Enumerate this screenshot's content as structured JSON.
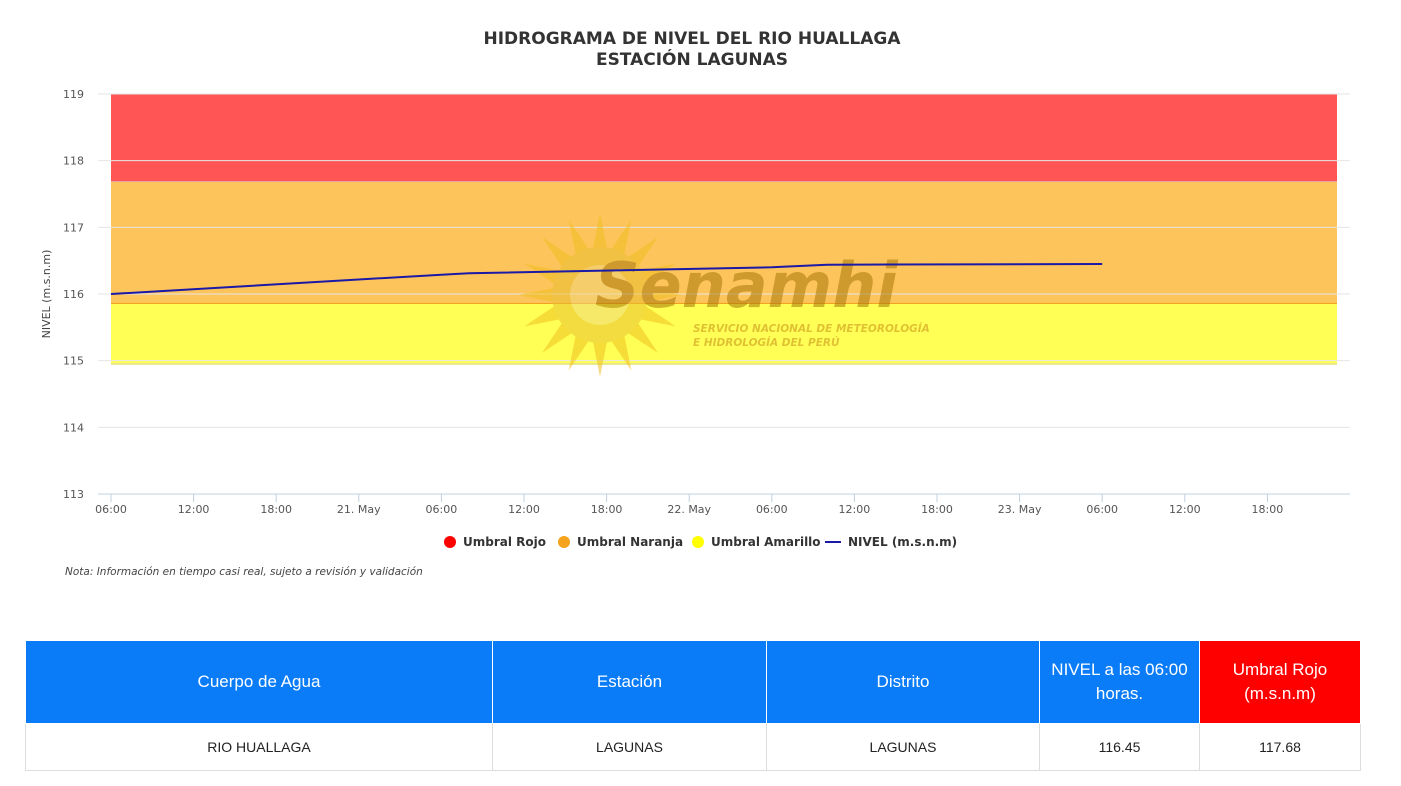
{
  "chart_data": {
    "type": "line",
    "title": "HIDROGRAMA DE NIVEL DEL RIO HUALLAGA",
    "subtitle": "ESTACIÓN LAGUNAS",
    "ylabel": "NIVEL (m.s.n.m)",
    "xlabel": "",
    "ylim": [
      113,
      119
    ],
    "yticks": [
      113,
      114,
      115,
      116,
      117,
      118,
      119
    ],
    "xlim": [
      "2024-05-20T06:00",
      "2024-05-23T22:00"
    ],
    "xtick_labels": [
      "06:00",
      "12:00",
      "18:00",
      "21. May",
      "06:00",
      "12:00",
      "18:00",
      "22. May",
      "06:00",
      "12:00",
      "18:00",
      "23. May",
      "06:00",
      "12:00",
      "18:00"
    ],
    "grid": true,
    "legend_position": "bottom",
    "bands": [
      {
        "name": "Umbral Rojo",
        "from": 117.68,
        "to": 119,
        "color": "#ff5555"
      },
      {
        "name": "Umbral Naranja",
        "from": 115.85,
        "to": 117.68,
        "color": "#fec45c"
      },
      {
        "name": "Umbral Amarillo",
        "from": 114.95,
        "to": 115.85,
        "color": "#ffff55"
      }
    ],
    "series": [
      {
        "name": "NIVEL (m.s.n.m)",
        "color": "#1a1aa6",
        "x": [
          "2024-05-20T06:00",
          "2024-05-21T06:00",
          "2024-05-21T08:00",
          "2024-05-22T06:00",
          "2024-05-22T10:00",
          "2024-05-23T06:00"
        ],
        "y": [
          116.0,
          116.29,
          116.31,
          116.4,
          116.44,
          116.45
        ]
      }
    ],
    "legend": [
      {
        "label": "Umbral Rojo",
        "color": "#ff0000",
        "marker": "circle"
      },
      {
        "label": "Umbral Naranja",
        "color": "#f5a21d",
        "marker": "circle"
      },
      {
        "label": "Umbral Amarillo",
        "color": "#ffff00",
        "marker": "circle"
      },
      {
        "label": "NIVEL (m.s.n.m)",
        "color": "#1a1aa6",
        "marker": "line"
      }
    ],
    "note": "Nota: Información en tiempo casi real, sujeto a revisión y validación"
  },
  "watermark": {
    "brand": "Senamhi",
    "line1": "SERVICIO NACIONAL DE METEOROLOGÍA",
    "line2": "E HIDROLOGÍA DEL PERÚ",
    "icon": "sun-logo-icon"
  },
  "table": {
    "headers": [
      "Cuerpo de Agua",
      "Estación",
      "Distrito",
      "NIVEL a las 06:00 horas.",
      "Umbral Rojo (m.s.n.m)"
    ],
    "rows": [
      [
        "RIO HUALLAGA",
        "LAGUNAS",
        "LAGUNAS",
        "116.45",
        "117.68"
      ]
    ]
  }
}
